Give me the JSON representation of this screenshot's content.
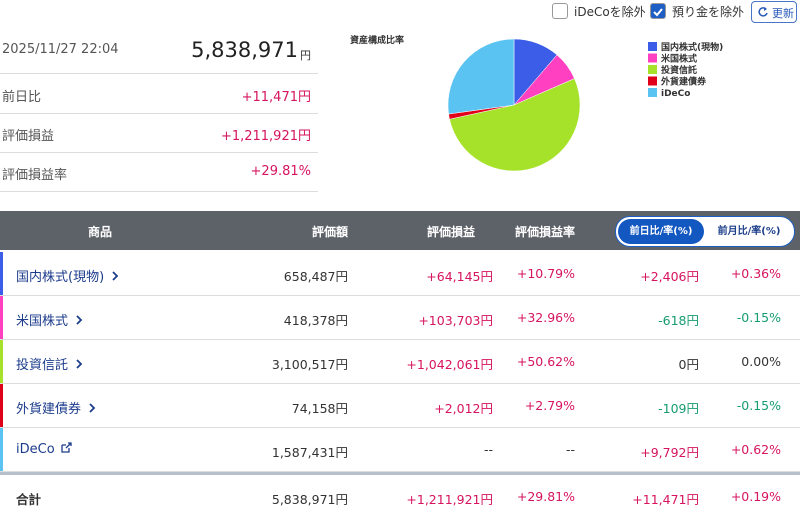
{
  "controls": {
    "checkboxes": [
      {
        "label": "iDeCoを除外",
        "checked": false
      },
      {
        "label": "預り金を除外",
        "checked": true
      }
    ],
    "refresh": "更新"
  },
  "summary": {
    "timestamp": "2025/11/27 22:04",
    "total": "5,838,971",
    "unit": "円",
    "rows": [
      {
        "label": "前日比",
        "value": "+11,471円"
      },
      {
        "label": "評価損益",
        "value": "+1,211,921円"
      },
      {
        "label": "評価損益率",
        "value": "+29.81%"
      }
    ]
  },
  "chart_data": {
    "type": "pie",
    "title": "資産構成比率",
    "categories": [
      "国内株式(現物)",
      "米国株式",
      "投資信託",
      "外貨建債券",
      "iDeCo"
    ],
    "values": [
      658487,
      418378,
      3100517,
      74158,
      1587431
    ],
    "colors": [
      "#3b5de7",
      "#ff40c0",
      "#a6e22a",
      "#e0001a",
      "#5bc3f2"
    ]
  },
  "table": {
    "columns": [
      "商品",
      "評価額",
      "評価損益",
      "評価損益率"
    ],
    "toggle": [
      {
        "label": "前日比/率(%)",
        "active": true
      },
      {
        "label": "前月比/率(%)",
        "active": false
      }
    ],
    "rows": [
      {
        "name": "国内株式(現物)",
        "value": "658,487円",
        "gain": "+64,145円",
        "gain_rate": "+10.79%",
        "change": "+2,406円",
        "change_rate": "+0.36%"
      },
      {
        "name": "米国株式",
        "value": "418,378円",
        "gain": "+103,703円",
        "gain_rate": "+32.96%",
        "change": "-618円",
        "change_rate": "-0.15%"
      },
      {
        "name": "投資信託",
        "value": "3,100,517円",
        "gain": "+1,042,061円",
        "gain_rate": "+50.62%",
        "change": "0円",
        "change_rate": "0.00%"
      },
      {
        "name": "外貨建債券",
        "value": "74,158円",
        "gain": "+2,012円",
        "gain_rate": "+2.79%",
        "change": "-109円",
        "change_rate": "-0.15%"
      },
      {
        "name": "iDeCo",
        "value": "1,587,431円",
        "gain": "--",
        "gain_rate": "--",
        "change": "+9,792円",
        "change_rate": "+0.62%",
        "external_link": true
      }
    ],
    "total": {
      "name": "合計",
      "value": "5,838,971円",
      "gain": "+1,211,921円",
      "gain_rate": "+29.81%",
      "change": "+11,471円",
      "change_rate": "+0.19%"
    }
  }
}
